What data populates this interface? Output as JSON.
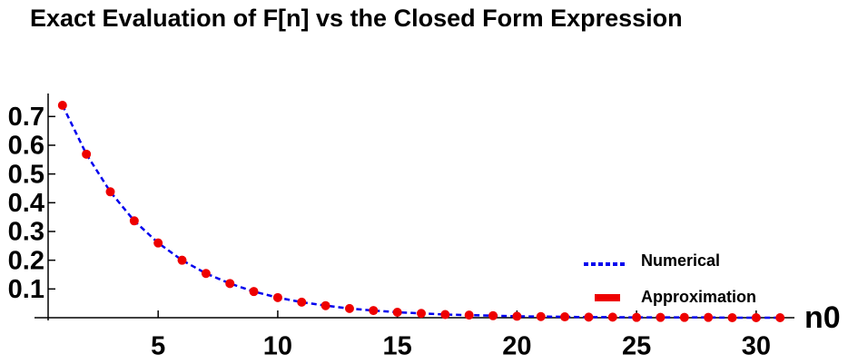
{
  "chart_data": {
    "type": "line",
    "title": "Exact Evaluation of F[n] vs the Closed Form Expression",
    "x_label": "n0",
    "x": [
      1,
      2,
      3,
      4,
      5,
      6,
      7,
      8,
      9,
      10,
      11,
      12,
      13,
      14,
      15,
      16,
      17,
      18,
      19,
      20,
      21,
      22,
      23,
      24,
      25,
      26,
      27,
      28,
      29,
      30,
      31
    ],
    "series": [
      {
        "name": "Numerical",
        "color": "#0000ee",
        "style": "dashed",
        "values": [
          0.739,
          0.569,
          0.438,
          0.337,
          0.26,
          0.2,
          0.154,
          0.119,
          0.091,
          0.07,
          0.054,
          0.042,
          0.032,
          0.025,
          0.019,
          0.015,
          0.011,
          0.009,
          0.007,
          0.005,
          0.004,
          0.003,
          0.002,
          0.002,
          0.001,
          0.001,
          0.001,
          0.001,
          0.0,
          0.0,
          0.0
        ]
      },
      {
        "name": "Approximation",
        "color": "#ee0000",
        "style": "points",
        "values": [
          0.739,
          0.569,
          0.438,
          0.337,
          0.26,
          0.2,
          0.154,
          0.119,
          0.091,
          0.07,
          0.054,
          0.042,
          0.032,
          0.025,
          0.019,
          0.015,
          0.011,
          0.009,
          0.007,
          0.005,
          0.004,
          0.003,
          0.002,
          0.002,
          0.001,
          0.001,
          0.001,
          0.001,
          0.0,
          0.0,
          0.0
        ]
      }
    ],
    "xlim": [
      0.4,
      31.6
    ],
    "ylim": [
      0,
      0.78
    ],
    "xticks": [
      5,
      10,
      15,
      20,
      25,
      30
    ],
    "yticks": [
      0.1,
      0.2,
      0.3,
      0.4,
      0.5,
      0.6,
      0.7
    ],
    "legend": "right"
  }
}
